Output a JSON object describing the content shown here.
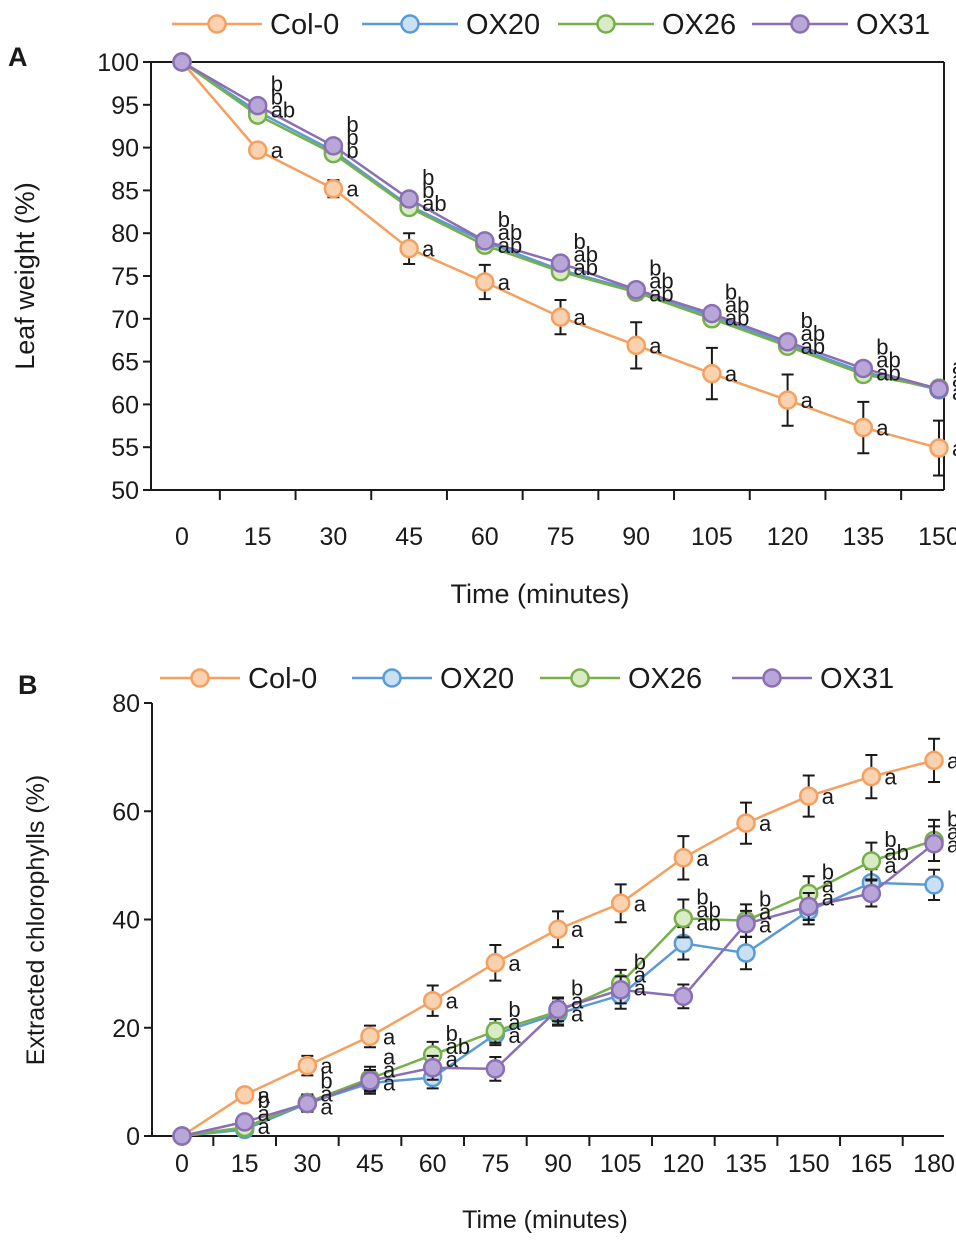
{
  "colors": {
    "Col-0": "#f5a05f",
    "OX20": "#5b9bd5",
    "OX26": "#77b04a",
    "OX31": "#8a6fb5"
  },
  "fill_colors": {
    "Col-0": "#fbd2b0",
    "OX20": "#c9e0f5",
    "OX26": "#d8ebc5",
    "OX31": "#b9a6d8"
  },
  "chart_data": [
    {
      "type": "line",
      "panel": "A",
      "xlabel": "Time (minutes)",
      "ylabel": "Leaf weight (%)",
      "ylim": [
        50,
        100
      ],
      "yticks": [
        "50",
        "55",
        "60",
        "65",
        "70",
        "75",
        "80",
        "85",
        "90",
        "95",
        "100"
      ],
      "categories": [
        "0",
        "15",
        "30",
        "45",
        "60",
        "75",
        "90",
        "105",
        "120",
        "135",
        "150"
      ],
      "legend": [
        "Col-0",
        "OX20",
        "OX26",
        "OX31"
      ],
      "series": [
        {
          "name": "Col-0",
          "values": [
            100,
            89.7,
            85.2,
            78.2,
            74.3,
            70.2,
            66.9,
            63.6,
            60.5,
            57.3,
            54.9
          ],
          "errors": [
            0,
            0.7,
            1.0,
            1.8,
            2.0,
            2.0,
            2.7,
            3.0,
            3.0,
            3.0,
            3.2
          ]
        },
        {
          "name": "OX20",
          "values": [
            100,
            94.2,
            89.6,
            83.2,
            79.0,
            75.7,
            73.3,
            70.3,
            67.0,
            63.8,
            61.7
          ],
          "errors": [
            0,
            0.8,
            0.8,
            0.8,
            0.8,
            0.8,
            0.8,
            0.8,
            0.8,
            0.8,
            0.8
          ]
        },
        {
          "name": "OX26",
          "values": [
            100,
            93.8,
            89.3,
            83.0,
            78.6,
            75.5,
            73.1,
            70.0,
            66.8,
            63.5,
            61.9
          ],
          "errors": [
            0,
            0.8,
            0.8,
            0.8,
            0.8,
            0.8,
            0.8,
            0.8,
            0.8,
            0.8,
            0.8
          ]
        },
        {
          "name": "OX31",
          "values": [
            100,
            94.9,
            90.2,
            84.0,
            79.1,
            76.5,
            73.4,
            70.6,
            67.3,
            64.2,
            61.8
          ],
          "errors": [
            0,
            0.6,
            0.6,
            0.6,
            0.6,
            0.6,
            0.6,
            0.6,
            0.6,
            0.6,
            0.6
          ]
        }
      ],
      "annotations": [
        {
          "i": 1,
          "labels": [
            "b",
            "b",
            "ab",
            "a"
          ]
        },
        {
          "i": 2,
          "labels": [
            "b",
            "b",
            "b",
            "a"
          ]
        },
        {
          "i": 3,
          "labels": [
            "b",
            "b",
            "ab",
            "a"
          ]
        },
        {
          "i": 4,
          "labels": [
            "b",
            "ab",
            "ab",
            "a"
          ]
        },
        {
          "i": 5,
          "labels": [
            "b",
            "ab",
            "ab",
            "a"
          ]
        },
        {
          "i": 6,
          "labels": [
            "b",
            "ab",
            "ab",
            "a"
          ]
        },
        {
          "i": 7,
          "labels": [
            "b",
            "ab",
            "ab",
            "a"
          ]
        },
        {
          "i": 8,
          "labels": [
            "b",
            "ab",
            "ab",
            "a"
          ]
        },
        {
          "i": 9,
          "labels": [
            "b",
            "ab",
            "ab",
            "a"
          ]
        },
        {
          "i": 10,
          "labels": [
            "a",
            "a",
            "a",
            "a"
          ]
        }
      ]
    },
    {
      "type": "line",
      "panel": "B",
      "xlabel": "Time  (minutes)",
      "ylabel": "Extracted chlorophylls (%)",
      "ylim": [
        0,
        80
      ],
      "yticks": [
        "0",
        "20",
        "40",
        "60",
        "80"
      ],
      "categories": [
        "0",
        "15",
        "30",
        "45",
        "60",
        "75",
        "90",
        "105",
        "120",
        "135",
        "150",
        "165",
        "180"
      ],
      "legend": [
        "Col-0",
        "OX20",
        "OX26",
        "OX31"
      ],
      "series": [
        {
          "name": "Col-0",
          "values": [
            0,
            7.6,
            13.0,
            18.4,
            25.0,
            32.0,
            38.2,
            43.0,
            51.4,
            57.8,
            62.8,
            66.4,
            69.4
          ],
          "errors": [
            0,
            1.2,
            1.8,
            2.0,
            2.8,
            3.3,
            3.3,
            3.5,
            4.0,
            3.8,
            3.8,
            4.0,
            4.0
          ]
        },
        {
          "name": "OX20",
          "values": [
            0,
            1.2,
            6.0,
            9.8,
            10.8,
            18.8,
            22.6,
            26.0,
            35.6,
            33.8,
            41.6,
            46.8,
            46.4
          ],
          "errors": [
            0,
            0.8,
            1.5,
            2.0,
            2.0,
            2.0,
            2.2,
            2.5,
            3.0,
            3.0,
            2.5,
            2.5,
            2.8
          ]
        },
        {
          "name": "OX26",
          "values": [
            0,
            1.6,
            6.2,
            10.6,
            15.0,
            19.4,
            23.0,
            28.2,
            40.2,
            39.8,
            44.8,
            50.8,
            54.6
          ],
          "errors": [
            0,
            0.8,
            1.5,
            2.2,
            2.4,
            2.2,
            2.4,
            2.5,
            3.5,
            3.0,
            3.2,
            3.4,
            3.8
          ]
        },
        {
          "name": "OX31",
          "values": [
            0,
            2.6,
            6.0,
            10.2,
            12.6,
            12.4,
            23.4,
            27.0,
            25.8,
            39.2,
            42.4,
            44.8,
            54.0
          ],
          "errors": [
            0,
            0.8,
            1.5,
            2.0,
            2.2,
            2.2,
            2.2,
            2.5,
            2.2,
            2.4,
            2.5,
            2.4,
            3.2
          ]
        }
      ],
      "annotations": [
        {
          "i": 1,
          "labels": [
            "b",
            "a",
            "a",
            "a"
          ]
        },
        {
          "i": 2,
          "labels": [
            "b",
            "a",
            "a",
            "a"
          ]
        },
        {
          "i": 3,
          "labels": [
            "a",
            "a",
            "a",
            "a"
          ]
        },
        {
          "i": 4,
          "labels": [
            "b",
            "ab",
            "a",
            "a"
          ]
        },
        {
          "i": 5,
          "labels": [
            "b",
            "a",
            "a",
            "a"
          ]
        },
        {
          "i": 6,
          "labels": [
            "b",
            "a",
            "a",
            "a"
          ]
        },
        {
          "i": 7,
          "labels": [
            "b",
            "a",
            "a",
            "a"
          ]
        },
        {
          "i": 8,
          "labels": [
            "b",
            "ab",
            "ab",
            "a"
          ]
        },
        {
          "i": 9,
          "labels": [
            "b",
            "a",
            "a",
            "a"
          ]
        },
        {
          "i": 10,
          "labels": [
            "b",
            "a",
            "a",
            "a"
          ]
        },
        {
          "i": 11,
          "labels": [
            "b",
            "ab",
            "a",
            "a"
          ]
        },
        {
          "i": 12,
          "labels": [
            "b",
            "ab",
            "ab",
            "a"
          ]
        }
      ]
    }
  ]
}
